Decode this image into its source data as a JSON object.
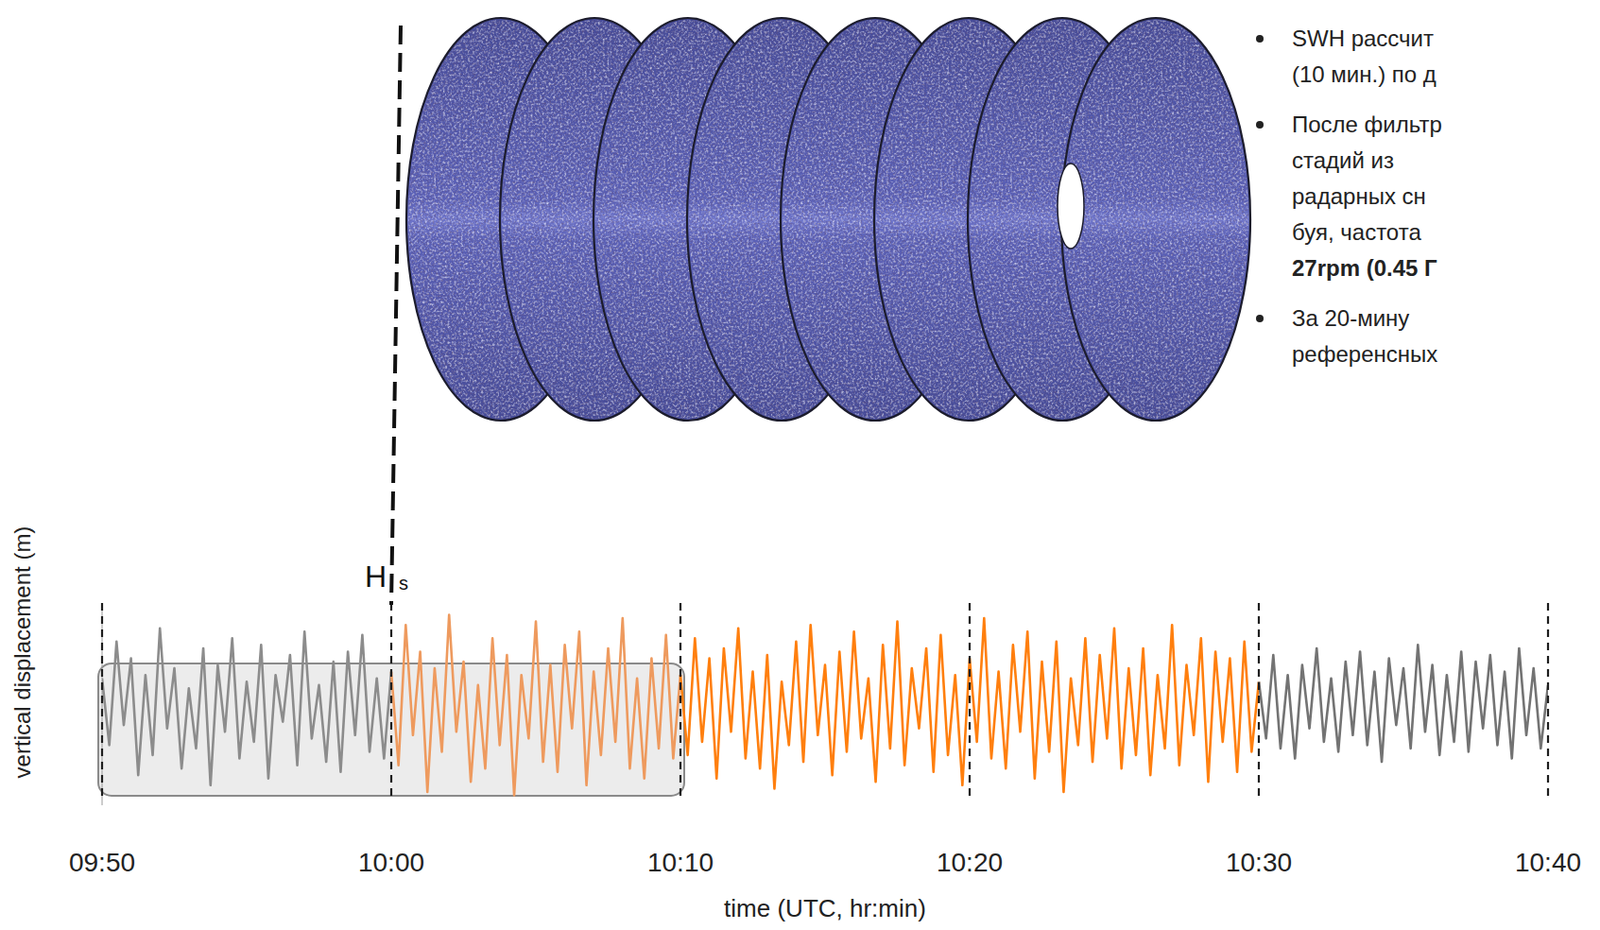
{
  "chart_data": {
    "type": "line",
    "x_label": "time (UTC, hr:min)",
    "y_label": "vertical displacement (m)",
    "xlim": [
      0,
      50
    ],
    "xticks": [
      {
        "value": 0,
        "label": "09:50"
      },
      {
        "value": 10,
        "label": "10:00"
      },
      {
        "value": 20,
        "label": "10:10"
      },
      {
        "value": 30,
        "label": "10:20"
      },
      {
        "value": 40,
        "label": "10:30"
      },
      {
        "value": 50,
        "label": "10:40"
      }
    ],
    "ylim": [
      -3,
      3
    ],
    "tick_labels": "x",
    "grid": true,
    "highlight": [
      0,
      20
    ],
    "annotations": [
      {
        "text": "H",
        "sub": "s",
        "x": 10
      }
    ],
    "series": [
      {
        "color": "#8c8c8c",
        "x": [
          0,
          0.25,
          0.5,
          0.75,
          1,
          1.25,
          1.5,
          1.75,
          2,
          2.25,
          2.5,
          2.75,
          3,
          3.25,
          3.5,
          3.75,
          4,
          4.25,
          4.5,
          4.75,
          5,
          5.25,
          5.5,
          5.75,
          6,
          6.25,
          6.5,
          6.75,
          7,
          7.25,
          7.5,
          7.75,
          8,
          8.25,
          8.5,
          8.75,
          9,
          9.25,
          9.5,
          9.75,
          10
        ],
        "values": [
          0.8,
          -1.2,
          1.9,
          -0.6,
          1.4,
          -2.1,
          0.9,
          -1.5,
          2.3,
          -0.7,
          1.1,
          -1.9,
          0.5,
          -1.3,
          1.7,
          -2.4,
          1.2,
          -0.8,
          2.0,
          -1.6,
          0.7,
          -1.1,
          1.8,
          -2.2,
          0.9,
          -0.5,
          1.5,
          -1.8,
          2.2,
          -1.0,
          0.6,
          -1.7,
          1.3,
          -2.0,
          1.6,
          -0.9,
          2.1,
          -1.4,
          0.8,
          -1.6,
          1.0
        ]
      },
      {
        "color": "#ee9a5e",
        "x": [
          10,
          10.25,
          10.5,
          10.75,
          11,
          11.25,
          11.5,
          11.75,
          12,
          12.25,
          12.5,
          12.75,
          13,
          13.25,
          13.5,
          13.75,
          14,
          14.25,
          14.5,
          14.75,
          15,
          15.25,
          15.5,
          15.75,
          16,
          16.25,
          16.5,
          16.75,
          17,
          17.25,
          17.5,
          17.75,
          18,
          18.25,
          18.5,
          18.75,
          19,
          19.25,
          19.5,
          19.75,
          20
        ],
        "values": [
          1.0,
          -1.8,
          2.4,
          -0.9,
          1.6,
          -2.6,
          1.1,
          -1.4,
          2.7,
          -0.8,
          1.3,
          -2.3,
          0.6,
          -1.9,
          2.0,
          -1.2,
          1.5,
          -2.7,
          0.9,
          -1.0,
          2.5,
          -1.7,
          1.2,
          -2.0,
          1.8,
          -0.7,
          2.2,
          -2.4,
          1.0,
          -1.5,
          1.7,
          -1.1,
          2.6,
          -1.9,
          0.8,
          -2.2,
          1.4,
          -1.3,
          2.1,
          -1.6,
          0.9
        ]
      },
      {
        "color": "#ff7f0e",
        "x": [
          20,
          20.25,
          20.5,
          20.75,
          21,
          21.25,
          21.5,
          21.75,
          22,
          22.25,
          22.5,
          22.75,
          23,
          23.25,
          23.5,
          23.75,
          24,
          24.25,
          24.5,
          24.75,
          25,
          25.25,
          25.5,
          25.75,
          26,
          26.25,
          26.5,
          26.75,
          27,
          27.25,
          27.5,
          27.75,
          28,
          28.25,
          28.5,
          28.75,
          29,
          29.25,
          29.5,
          29.75,
          30,
          30.25,
          30.5,
          30.75,
          31,
          31.25,
          31.5,
          31.75,
          32,
          32.25,
          32.5,
          32.75,
          33,
          33.25,
          33.5,
          33.75,
          34,
          34.25,
          34.5,
          34.75,
          35,
          35.25,
          35.5,
          35.75,
          36,
          36.25,
          36.5,
          36.75,
          37,
          37.25,
          37.5,
          37.75,
          38,
          38.25,
          38.5,
          38.75,
          39,
          39.25,
          39.5,
          39.75,
          40
        ],
        "values": [
          0.9,
          -1.5,
          2.0,
          -1.1,
          1.4,
          -2.2,
          1.7,
          -0.8,
          2.3,
          -1.6,
          1.0,
          -1.9,
          1.5,
          -2.5,
          0.7,
          -1.2,
          1.9,
          -1.7,
          2.4,
          -0.9,
          1.2,
          -2.1,
          1.6,
          -1.4,
          2.2,
          -1.0,
          0.8,
          -2.3,
          1.8,
          -1.3,
          2.5,
          -1.8,
          1.1,
          -0.7,
          1.7,
          -2.0,
          2.1,
          -1.5,
          0.9,
          -2.4,
          1.4,
          -1.1,
          2.6,
          -1.6,
          1.0,
          -1.9,
          1.8,
          -0.8,
          2.2,
          -2.2,
          1.3,
          -1.4,
          1.9,
          -2.6,
          0.8,
          -1.2,
          2.0,
          -1.7,
          1.5,
          -1.0,
          2.3,
          -1.9,
          1.1,
          -1.5,
          1.7,
          -2.1,
          0.9,
          -1.3,
          2.4,
          -1.8,
          1.2,
          -0.9,
          2.0,
          -2.3,
          1.6,
          -1.1,
          1.4,
          -2.0,
          1.9,
          -1.4,
          0.7
        ]
      },
      {
        "color": "#737373",
        "x": [
          40,
          40.25,
          40.5,
          40.75,
          41,
          41.25,
          41.5,
          41.75,
          42,
          42.25,
          42.5,
          42.75,
          43,
          43.25,
          43.5,
          43.75,
          44,
          44.25,
          44.5,
          44.75,
          45,
          45.25,
          45.5,
          45.75,
          46,
          46.25,
          46.5,
          46.75,
          47,
          47.25,
          47.5,
          47.75,
          48,
          48.25,
          48.5,
          48.75,
          49,
          49.25,
          49.5,
          49.75,
          50
        ],
        "values": [
          0.7,
          -1.0,
          1.5,
          -1.3,
          0.9,
          -1.6,
          1.2,
          -0.7,
          1.7,
          -1.1,
          0.8,
          -1.4,
          1.3,
          -0.9,
          1.6,
          -1.2,
          1.0,
          -1.7,
          1.4,
          -0.6,
          1.1,
          -1.3,
          1.8,
          -0.8,
          1.2,
          -1.5,
          0.9,
          -1.1,
          1.6,
          -1.4,
          1.3,
          -0.7,
          1.5,
          -1.2,
          1.0,
          -1.6,
          1.7,
          -0.9,
          1.1,
          -1.3,
          0.6
        ]
      }
    ]
  },
  "slide": {
    "bullets": [
      {
        "lines": [
          {
            "text": "SWH рассчит"
          },
          {
            "text": "(10 мин.) по д"
          }
        ]
      },
      {
        "lines": [
          {
            "text": "После фильтр"
          },
          {
            "text": "стадий из"
          },
          {
            "text": "радарных сн"
          },
          {
            "text": "буя, частота"
          },
          {
            "text": "27rpm (0.45 Г",
            "bold": true
          }
        ]
      },
      {
        "lines": [
          {
            "text": "За 20-мину"
          },
          {
            "text": "референсных"
          }
        ]
      }
    ]
  }
}
